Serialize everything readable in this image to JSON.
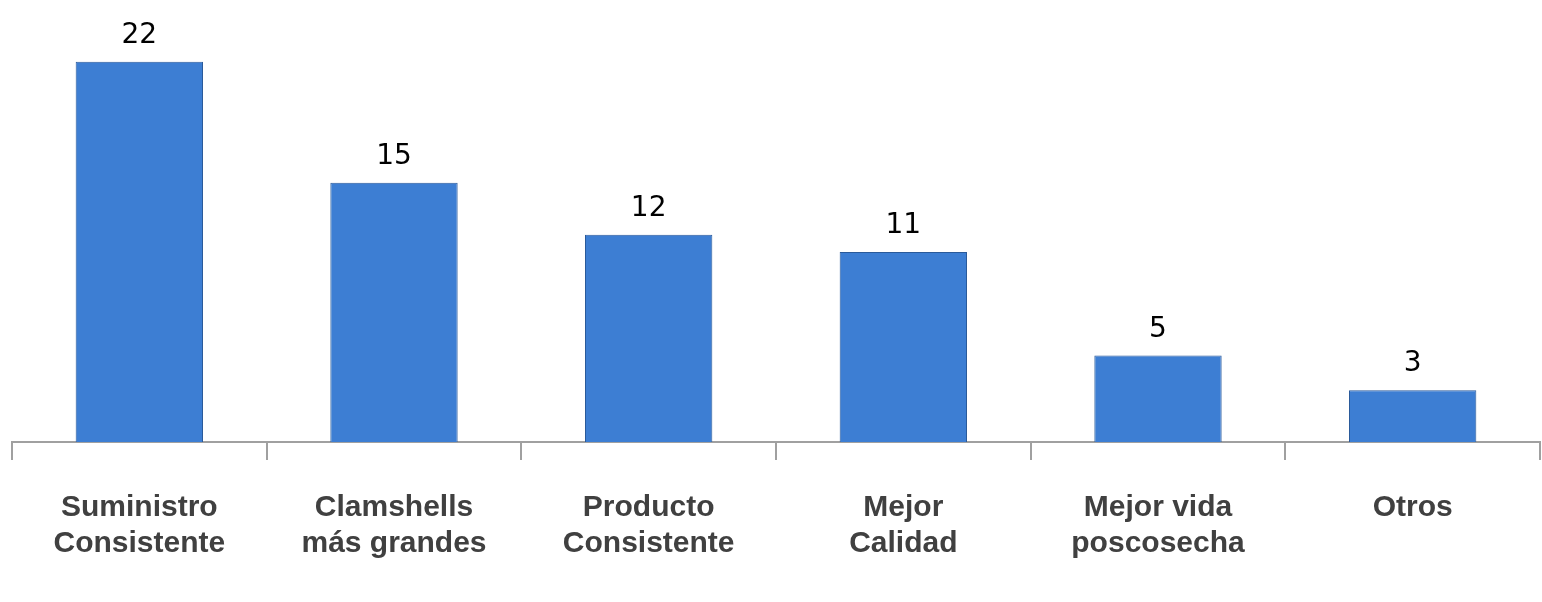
{
  "chart_data": {
    "type": "bar",
    "categories": [
      "Suministro Consistente",
      "Clamshells más grandes",
      "Producto Consistente",
      "Mejor Calidad",
      "Mejor vida poscosecha",
      "Otros"
    ],
    "values": [
      22,
      15,
      12,
      11,
      5,
      3
    ],
    "color": "#3d7ed3",
    "data_labels": true,
    "grid": false,
    "legend": false,
    "tick_labels": "x"
  }
}
